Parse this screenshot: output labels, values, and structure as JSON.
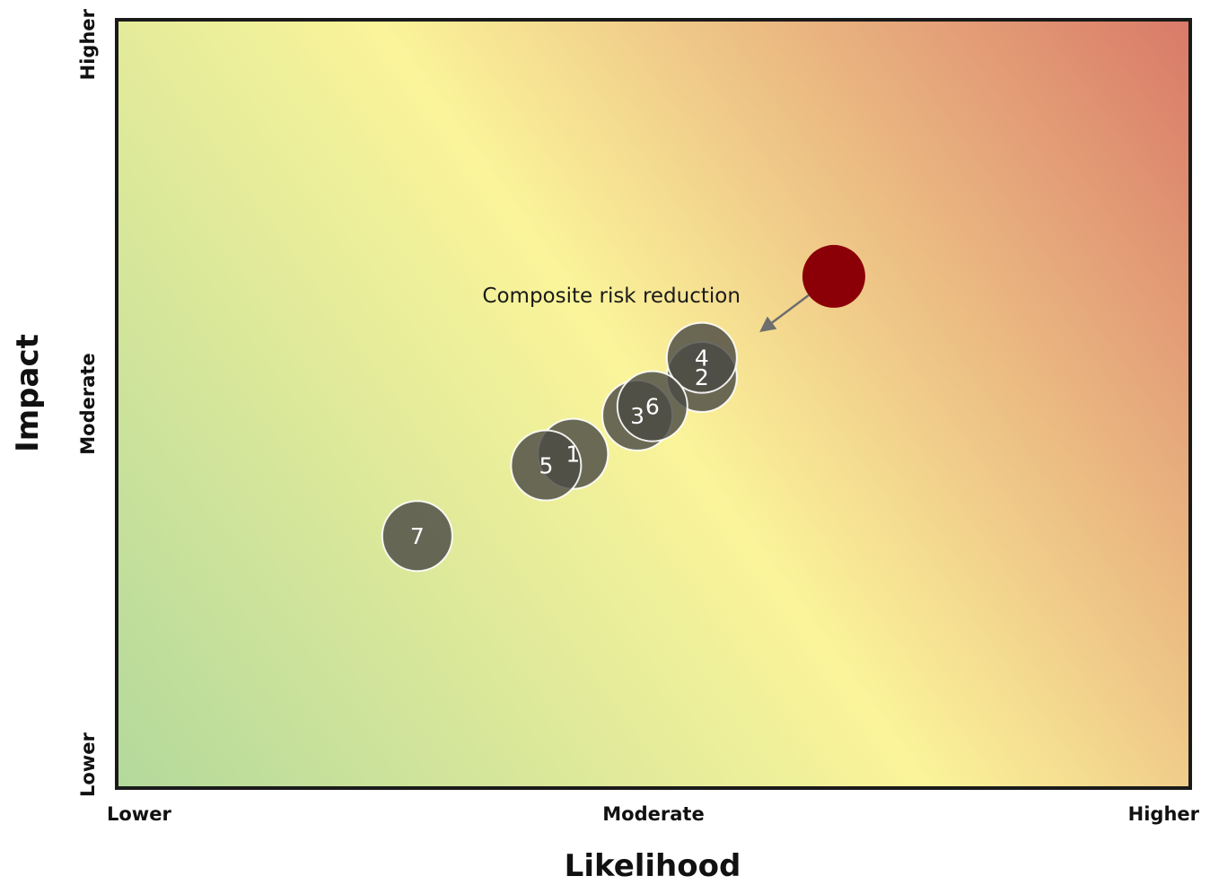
{
  "chart_data": {
    "type": "scatter",
    "title": "",
    "xlabel": "Likelihood",
    "ylabel": "Impact",
    "xlim": [
      0,
      10
    ],
    "ylim": [
      0,
      10
    ],
    "x_ticks": [
      {
        "value": 0,
        "label": "Lower"
      },
      {
        "value": 5,
        "label": "Moderate"
      },
      {
        "value": 10,
        "label": "Higher"
      }
    ],
    "y_ticks": [
      {
        "value": 0,
        "label": "Lower"
      },
      {
        "value": 5,
        "label": "Moderate"
      },
      {
        "value": 10,
        "label": "Higher"
      }
    ],
    "grid": false,
    "background": "diagonal gradient: green (low-low) → yellow (middle) → red (high-high)",
    "gradient_colors": [
      "#b3d99b",
      "#fbf49a",
      "#d97a68"
    ],
    "points": [
      {
        "label": "1",
        "x": 4.25,
        "y": 4.35
      },
      {
        "label": "2",
        "x": 5.45,
        "y": 5.35
      },
      {
        "label": "3",
        "x": 4.85,
        "y": 4.85
      },
      {
        "label": "4",
        "x": 5.45,
        "y": 5.6
      },
      {
        "label": "5",
        "x": 4.0,
        "y": 4.2
      },
      {
        "label": "6",
        "x": 4.99,
        "y": 4.97
      },
      {
        "label": "7",
        "x": 2.8,
        "y": 3.28
      }
    ],
    "composite": {
      "x": 6.68,
      "y": 6.66
    },
    "point_color": "#4a4a44",
    "composite_color": "#8b0007",
    "annotation": "Composite risk reduction"
  }
}
